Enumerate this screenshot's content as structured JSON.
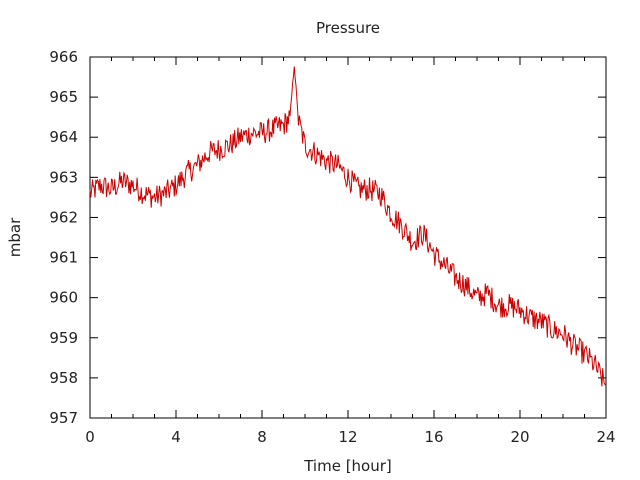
{
  "chart_data": {
    "type": "line",
    "title": "Pressure",
    "xlabel": "Time [hour]",
    "ylabel": "mbar",
    "xlim": [
      0,
      24
    ],
    "ylim": [
      957,
      966
    ],
    "xticks": [
      0,
      4,
      8,
      12,
      16,
      20,
      24
    ],
    "yticks": [
      957,
      958,
      959,
      960,
      961,
      962,
      963,
      964,
      965,
      966
    ],
    "grid": false,
    "series_color": "#cc0000",
    "series": [
      {
        "x": [
          0,
          0.5,
          1,
          1.5,
          2,
          2.5,
          3,
          3.5,
          4,
          4.5,
          5,
          5.5,
          6,
          6.5,
          7,
          7.5,
          8,
          8.5,
          9,
          9.3,
          9.5,
          9.7,
          10,
          10.5,
          11,
          11.5,
          12,
          12.5,
          13,
          13.5,
          14,
          14.5,
          15,
          15.5,
          16,
          16.5,
          17,
          17.5,
          18,
          18.5,
          19,
          19.5,
          20,
          20.5,
          21,
          21.5,
          22,
          22.5,
          23,
          23.5,
          24
        ],
        "y": [
          962.6,
          962.8,
          962.7,
          962.9,
          962.8,
          962.6,
          962.5,
          962.6,
          962.8,
          963.1,
          963.3,
          963.6,
          963.7,
          963.8,
          964.0,
          964.1,
          964.1,
          964.2,
          964.3,
          964.5,
          965.8,
          964.4,
          963.8,
          963.6,
          963.4,
          963.3,
          963.0,
          962.7,
          962.7,
          962.6,
          962.1,
          961.8,
          961.4,
          961.6,
          961.1,
          960.8,
          960.5,
          960.3,
          960.0,
          960.1,
          959.8,
          959.8,
          959.7,
          959.5,
          959.4,
          959.2,
          959.1,
          958.8,
          958.6,
          958.3,
          957.8
        ]
      }
    ]
  }
}
